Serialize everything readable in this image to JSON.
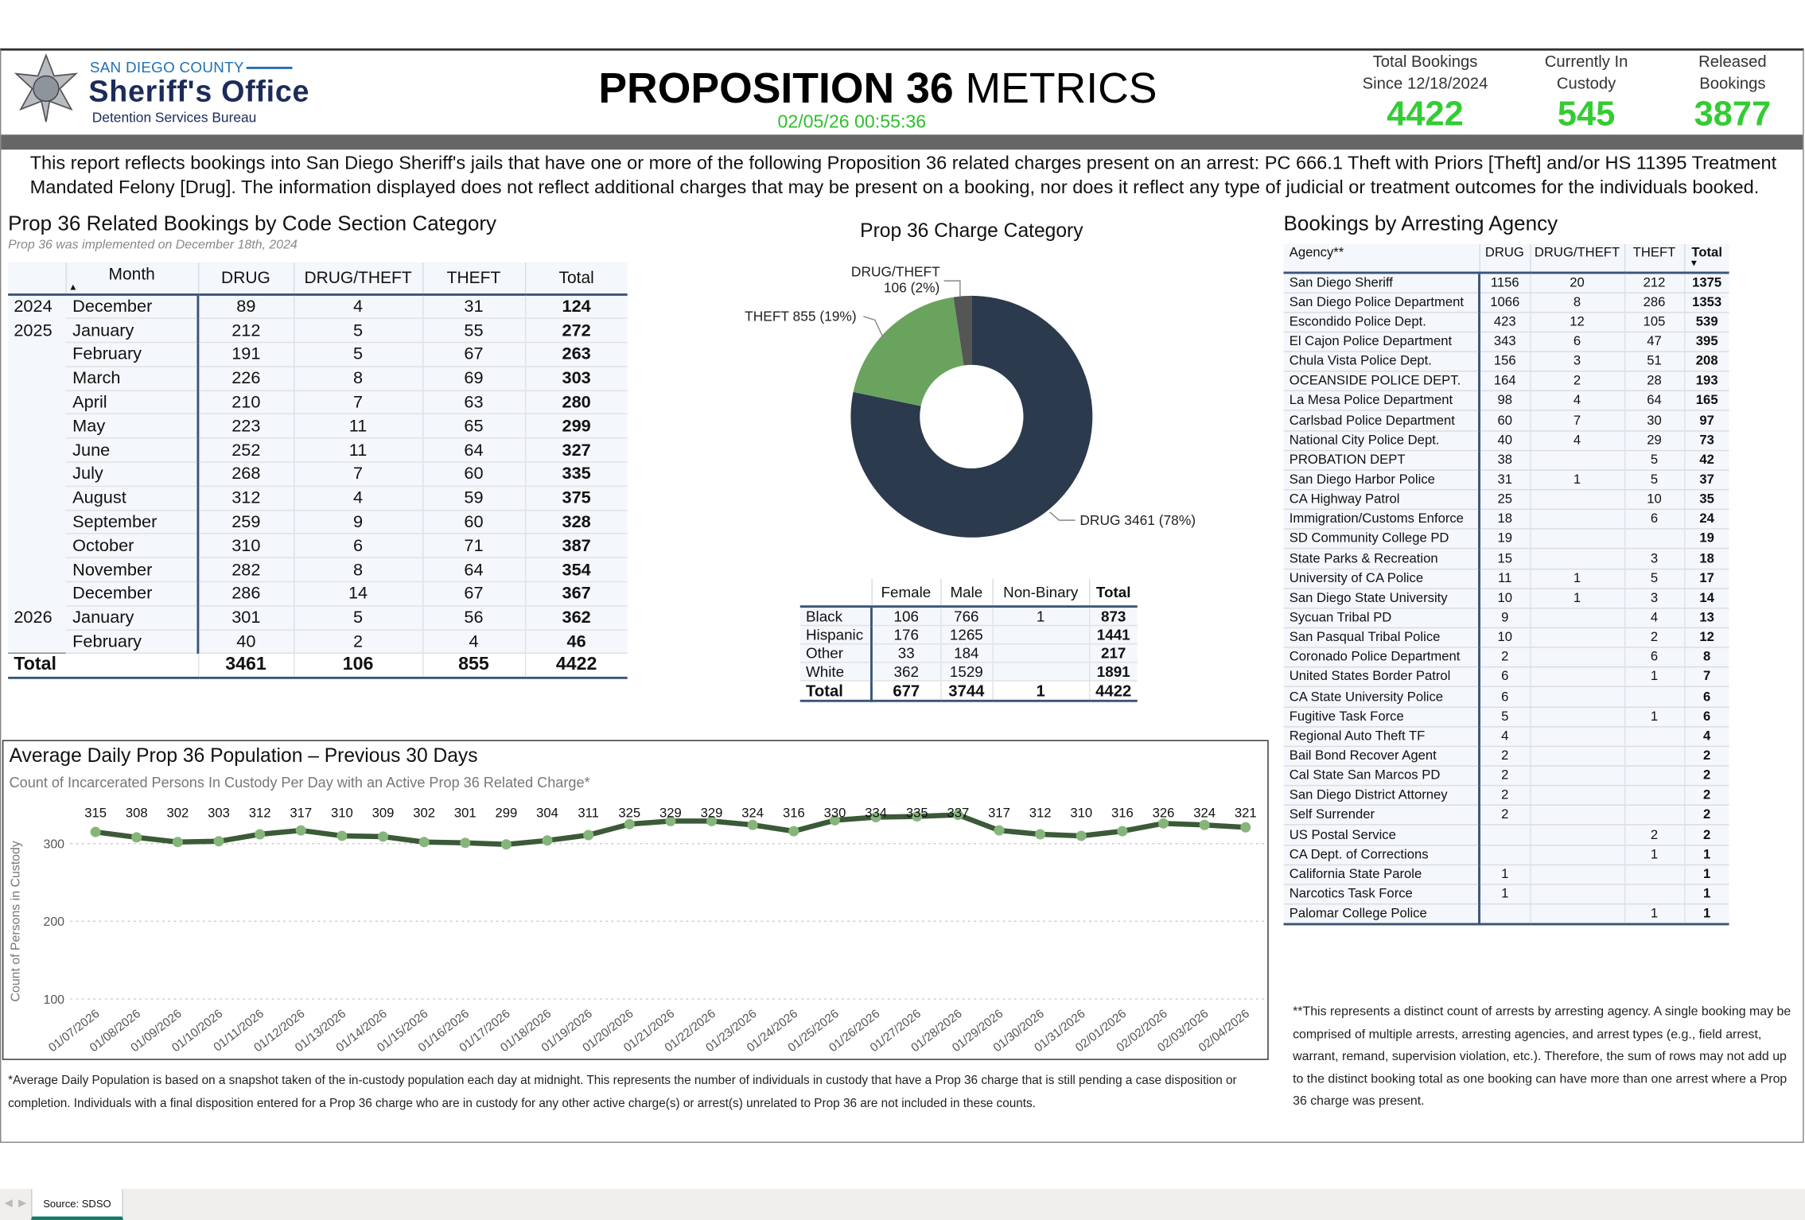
{
  "header": {
    "org_county": "SAN DIEGO COUNTY",
    "org_name": "Sheriff's Office",
    "org_bureau": "Detention Services Bureau",
    "title_bold": "PROPOSITION 36",
    "title_light": " METRICS",
    "timestamp": "02/05/26 00:55:36",
    "kpis": [
      {
        "label1": "Total Bookings",
        "label2": "Since 12/18/2024",
        "value": "4422"
      },
      {
        "label1": "Currently In",
        "label2": "Custody",
        "value": "545"
      },
      {
        "label1": "Released",
        "label2": "Bookings",
        "value": "3877"
      }
    ],
    "kpi_color": "#33cc33"
  },
  "description": "This report reflects bookings into San Diego Sheriff's jails that have one or more of the following Proposition 36 related charges present on an arrest: PC 666.1 Theft with Priors [Theft] and/or HS 11395 Treatment Mandated Felony [Drug]. The information displayed does not reflect additional charges that may be present on a booking, nor does it reflect any type of judicial or treatment outcomes for the individuals booked.",
  "monthly": {
    "title": "Prop 36 Related Bookings by Code Section Category",
    "subtitle": "Prop 36 was implemented on December 18th, 2024",
    "columns": [
      "Month",
      "DRUG",
      "DRUG/THEFT",
      "THEFT",
      "Total"
    ],
    "rows": [
      {
        "year": "2024",
        "month": "December",
        "drug": "89",
        "dt": "4",
        "theft": "31",
        "total": "124"
      },
      {
        "year": "2025",
        "month": "January",
        "drug": "212",
        "dt": "5",
        "theft": "55",
        "total": "272"
      },
      {
        "year": "",
        "month": "February",
        "drug": "191",
        "dt": "5",
        "theft": "67",
        "total": "263"
      },
      {
        "year": "",
        "month": "March",
        "drug": "226",
        "dt": "8",
        "theft": "69",
        "total": "303"
      },
      {
        "year": "",
        "month": "April",
        "drug": "210",
        "dt": "7",
        "theft": "63",
        "total": "280"
      },
      {
        "year": "",
        "month": "May",
        "drug": "223",
        "dt": "11",
        "theft": "65",
        "total": "299"
      },
      {
        "year": "",
        "month": "June",
        "drug": "252",
        "dt": "11",
        "theft": "64",
        "total": "327"
      },
      {
        "year": "",
        "month": "July",
        "drug": "268",
        "dt": "7",
        "theft": "60",
        "total": "335"
      },
      {
        "year": "",
        "month": "August",
        "drug": "312",
        "dt": "4",
        "theft": "59",
        "total": "375"
      },
      {
        "year": "",
        "month": "September",
        "drug": "259",
        "dt": "9",
        "theft": "60",
        "total": "328"
      },
      {
        "year": "",
        "month": "October",
        "drug": "310",
        "dt": "6",
        "theft": "71",
        "total": "387"
      },
      {
        "year": "",
        "month": "November",
        "drug": "282",
        "dt": "8",
        "theft": "64",
        "total": "354"
      },
      {
        "year": "",
        "month": "December",
        "drug": "286",
        "dt": "14",
        "theft": "67",
        "total": "367"
      },
      {
        "year": "2026",
        "month": "January",
        "drug": "301",
        "dt": "5",
        "theft": "56",
        "total": "362"
      },
      {
        "year": "",
        "month": "February",
        "drug": "40",
        "dt": "2",
        "theft": "4",
        "total": "46"
      }
    ],
    "total": {
      "label": "Total",
      "drug": "3461",
      "dt": "106",
      "theft": "855",
      "total": "4422"
    }
  },
  "chart_data": [
    {
      "type": "pie",
      "title": "Prop 36 Charge Category",
      "slices": [
        {
          "label": "DRUG 3461 (78%)",
          "category": "DRUG",
          "value": 3461,
          "color": "#2b3a4d"
        },
        {
          "label": "THEFT 855 (19%)",
          "category": "THEFT",
          "value": 855,
          "color": "#6aa35e"
        },
        {
          "label_line1": "DRUG/THEFT",
          "label_line2": "106 (2%)",
          "category": "DRUG/THEFT",
          "value": 106,
          "color": "#555555"
        }
      ],
      "donut": true
    },
    {
      "type": "line",
      "title": "Average Daily Prop 36 Population – Previous 30 Days",
      "subtitle": "Count of Incarcerated Persons In Custody Per Day with an Active Prop 36 Related Charge*",
      "ylabel": "Count of Persons in Custody",
      "yticks": [
        100,
        200,
        300
      ],
      "ylim": [
        100,
        340
      ],
      "x": [
        "01/07/2026",
        "01/08/2026",
        "01/09/2026",
        "01/10/2026",
        "01/11/2026",
        "01/12/2026",
        "01/13/2026",
        "01/14/2026",
        "01/15/2026",
        "01/16/2026",
        "01/17/2026",
        "01/18/2026",
        "01/19/2026",
        "01/20/2026",
        "01/21/2026",
        "01/22/2026",
        "01/23/2026",
        "01/24/2026",
        "01/25/2026",
        "01/26/2026",
        "01/27/2026",
        "01/28/2026",
        "01/29/2026",
        "01/30/2026",
        "01/31/2026",
        "02/01/2026",
        "02/02/2026",
        "02/03/2026",
        "02/04/2026"
      ],
      "y": [
        315,
        308,
        302,
        303,
        312,
        317,
        310,
        309,
        302,
        301,
        299,
        304,
        311,
        325,
        329,
        329,
        324,
        316,
        330,
        334,
        335,
        337,
        317,
        312,
        310,
        316,
        326,
        324,
        321
      ],
      "line_color": "#3b5a37",
      "marker_color": "#86b57c",
      "grid": "dotted horizontal"
    }
  ],
  "gender": {
    "columns": [
      "",
      "Female",
      "Male",
      "Non-Binary",
      "Total"
    ],
    "rows": [
      {
        "race": "Black",
        "female": "106",
        "male": "766",
        "nb": "1",
        "total": "873"
      },
      {
        "race": "Hispanic",
        "female": "176",
        "male": "1265",
        "nb": "",
        "total": "1441"
      },
      {
        "race": "Other",
        "female": "33",
        "male": "184",
        "nb": "",
        "total": "217"
      },
      {
        "race": "White",
        "female": "362",
        "male": "1529",
        "nb": "",
        "total": "1891"
      }
    ],
    "total": {
      "race": "Total",
      "female": "677",
      "male": "3744",
      "nb": "1",
      "total": "4422"
    }
  },
  "agency": {
    "title": "Bookings by Arresting Agency",
    "columns": [
      "Agency**",
      "DRUG",
      "DRUG/THEFT",
      "THEFT",
      "Total"
    ],
    "rows": [
      [
        "San Diego Sheriff",
        "1156",
        "20",
        "212",
        "1375"
      ],
      [
        "San Diego Police Department",
        "1066",
        "8",
        "286",
        "1353"
      ],
      [
        "Escondido Police Dept.",
        "423",
        "12",
        "105",
        "539"
      ],
      [
        "El Cajon Police Department",
        "343",
        "6",
        "47",
        "395"
      ],
      [
        "Chula Vista Police Dept.",
        "156",
        "3",
        "51",
        "208"
      ],
      [
        "OCEANSIDE POLICE DEPT.",
        "164",
        "2",
        "28",
        "193"
      ],
      [
        "La Mesa Police Department",
        "98",
        "4",
        "64",
        "165"
      ],
      [
        "Carlsbad Police Department",
        "60",
        "7",
        "30",
        "97"
      ],
      [
        "National City Police Dept.",
        "40",
        "4",
        "29",
        "73"
      ],
      [
        "PROBATION DEPT",
        "38",
        "",
        "5",
        "42"
      ],
      [
        "San Diego Harbor Police",
        "31",
        "1",
        "5",
        "37"
      ],
      [
        "CA Highway Patrol",
        "25",
        "",
        "10",
        "35"
      ],
      [
        "Immigration/Customs Enforce",
        "18",
        "",
        "6",
        "24"
      ],
      [
        "SD Community College PD",
        "19",
        "",
        "",
        "19"
      ],
      [
        "State Parks & Recreation",
        "15",
        "",
        "3",
        "18"
      ],
      [
        "University of CA Police",
        "11",
        "1",
        "5",
        "17"
      ],
      [
        "San Diego State University",
        "10",
        "1",
        "3",
        "14"
      ],
      [
        "Sycuan Tribal PD",
        "9",
        "",
        "4",
        "13"
      ],
      [
        "San Pasqual Tribal Police",
        "10",
        "",
        "2",
        "12"
      ],
      [
        "Coronado Police Department",
        "2",
        "",
        "6",
        "8"
      ],
      [
        "United States Border Patrol",
        "6",
        "",
        "1",
        "7"
      ],
      [
        "CA State University Police",
        "6",
        "",
        "",
        "6"
      ],
      [
        "Fugitive Task Force",
        "5",
        "",
        "1",
        "6"
      ],
      [
        "Regional Auto Theft TF",
        "4",
        "",
        "",
        "4"
      ],
      [
        "Bail Bond Recover Agent",
        "2",
        "",
        "",
        "2"
      ],
      [
        "Cal State San Marcos PD",
        "2",
        "",
        "",
        "2"
      ],
      [
        "San Diego District Attorney",
        "2",
        "",
        "",
        "2"
      ],
      [
        "Self Surrender",
        "2",
        "",
        "",
        "2"
      ],
      [
        "US Postal Service",
        "",
        "",
        "2",
        "2"
      ],
      [
        "CA Dept. of Corrections",
        "",
        "",
        "1",
        "1"
      ],
      [
        "California State Parole",
        "1",
        "",
        "",
        "1"
      ],
      [
        "Narcotics Task Force",
        "1",
        "",
        "",
        "1"
      ],
      [
        "Palomar College Police",
        "",
        "",
        "1",
        "1"
      ]
    ],
    "footnote": "**This represents a distinct count of arrests by arresting agency. A single booking may be comprised of multiple arrests, arresting agencies, and arrest types (e.g., field arrest, warrant, remand, supervision violation, etc.). Therefore, the sum of rows may not add up to the distinct booking total as one booking can have more than one arrest where a Prop 36 charge was present."
  },
  "line_footnote": "*Average Daily Population is based on a snapshot taken of the in-custody population each day at midnight. This represents the number of individuals in custody that have a Prop 36 charge that is still pending a case disposition or completion. Individuals with a final disposition entered for a Prop 36 charge who are in custody for any other active charge(s) or arrest(s) unrelated to Prop 36 are not included in these counts.",
  "footer": {
    "tab_label": "Source: SDSO"
  }
}
